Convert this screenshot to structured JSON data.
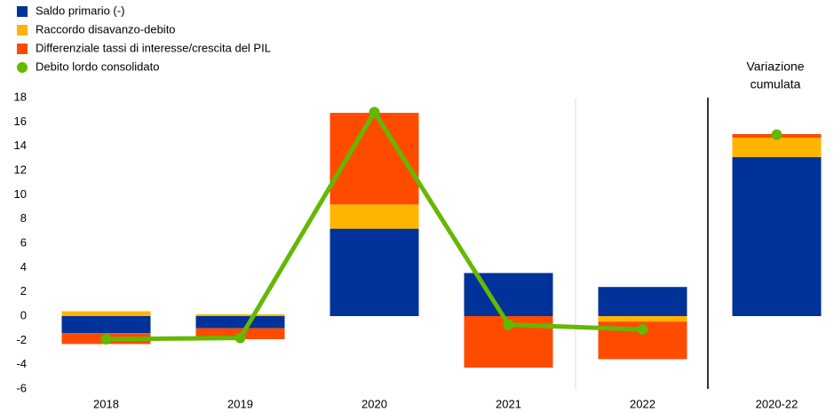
{
  "chart_data": {
    "type": "bar",
    "categories": [
      "2018",
      "2019",
      "2020",
      "2021",
      "2022",
      "2020-22"
    ],
    "annotation": [
      "Variazione",
      "cumulata"
    ],
    "series": [
      {
        "name": "Saldo primario (-)",
        "color": "#003299",
        "values": [
          -1.4,
          -1.0,
          7.2,
          3.55,
          2.4,
          13.1
        ]
      },
      {
        "name": "Raccordo disavanzo-debito",
        "color": "#ffb400",
        "values": [
          0.4,
          0.15,
          2.0,
          0,
          -0.45,
          1.6
        ]
      },
      {
        "name": "Differenziale tassi di interesse/crescita del PIL",
        "color": "#ff4b00",
        "values": [
          -0.9,
          -0.9,
          7.55,
          -4.25,
          -3.1,
          0.3
        ]
      },
      {
        "name": "Debito lordo consolidato",
        "color": "#65b800",
        "type": "line",
        "values": [
          -1.9,
          -1.8,
          16.8,
          -0.7,
          -1.1,
          14.95
        ]
      }
    ],
    "ylim": [
      -6,
      18
    ],
    "yticks": [
      -6,
      -4,
      -2,
      0,
      2,
      4,
      6,
      8,
      10,
      12,
      14,
      16,
      18
    ],
    "grid": false
  }
}
